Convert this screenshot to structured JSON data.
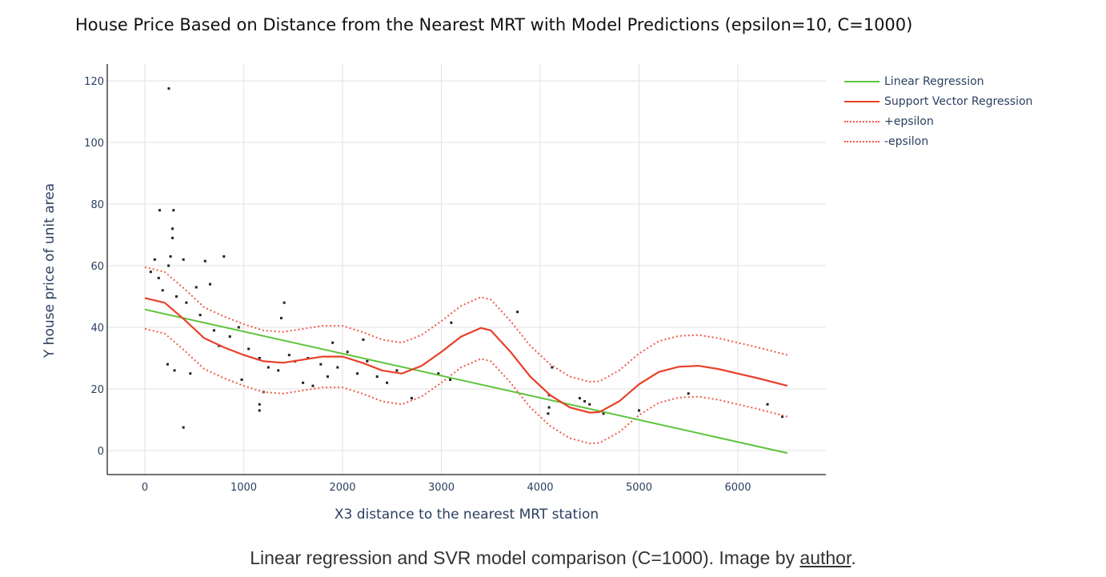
{
  "caption": {
    "text": "Linear regression and SVR model comparison (C=1000). Image by ",
    "link_text": "author",
    "end": "."
  },
  "chart_data": {
    "type": "scatter",
    "title": "House Price Based on Distance from the Nearest MRT with Model Predictions (epsilon=10, C=1000)",
    "xlabel": "X3 distance to the nearest MRT station",
    "ylabel": "Y house price of unit area",
    "xlim": [
      -370,
      6880
    ],
    "ylim": [
      -8,
      124
    ],
    "xticks": [
      0,
      1000,
      2000,
      3000,
      4000,
      5000,
      6000
    ],
    "yticks": [
      0,
      20,
      40,
      60,
      80,
      100,
      120
    ],
    "grid": true,
    "legend_position": "right",
    "colors": {
      "linear": "#5cc43a",
      "svr": "#e8402a",
      "epsilon": "#ef5a4a",
      "points": "#222222",
      "axis_text": "#2a3f5f",
      "grid": "#e6e6e6"
    },
    "series": [
      {
        "name": "Linear Regression",
        "style": "solid-green",
        "x": [
          0,
          6500
        ],
        "y": [
          45.8,
          -0.8
        ]
      },
      {
        "name": "Support Vector Regression",
        "style": "solid-red",
        "x": [
          0,
          200,
          400,
          600,
          800,
          1000,
          1200,
          1400,
          1600,
          1800,
          2000,
          2200,
          2400,
          2600,
          2800,
          3000,
          3200,
          3400,
          3500,
          3700,
          3900,
          4100,
          4300,
          4500,
          4600,
          4800,
          5000,
          5200,
          5400,
          5600,
          5800,
          6000,
          6200,
          6500
        ],
        "y": [
          49.5,
          48.0,
          42.5,
          36.5,
          33.5,
          31.0,
          29.0,
          28.5,
          29.5,
          30.5,
          30.5,
          28.5,
          26.0,
          25.0,
          27.5,
          32.0,
          37.0,
          39.8,
          39.0,
          32.0,
          24.0,
          18.0,
          14.0,
          12.3,
          12.5,
          16.0,
          21.5,
          25.5,
          27.2,
          27.5,
          26.5,
          25.0,
          23.5,
          21.0
        ]
      },
      {
        "name": "+epsilon",
        "style": "dotted-red",
        "offset": 10
      },
      {
        "name": "-epsilon",
        "style": "dotted-red",
        "offset": -10
      }
    ],
    "scatter_points": [
      [
        243,
        117.5
      ],
      [
        390,
        7.5
      ],
      [
        150,
        78
      ],
      [
        290,
        78
      ],
      [
        280,
        72
      ],
      [
        280,
        69
      ],
      [
        260,
        63
      ],
      [
        390,
        62
      ],
      [
        610,
        61.5
      ],
      [
        800,
        63
      ],
      [
        240,
        60
      ],
      [
        520,
        53
      ],
      [
        660,
        54
      ],
      [
        1410,
        48
      ],
      [
        1380,
        43
      ],
      [
        3770,
        45
      ],
      [
        3100,
        41.5
      ],
      [
        1160,
        15
      ],
      [
        1160,
        13
      ],
      [
        1900,
        35
      ],
      [
        2210,
        36
      ],
      [
        2700,
        17
      ],
      [
        4120,
        27
      ],
      [
        4090,
        18
      ],
      [
        4090,
        14
      ],
      [
        4080,
        12
      ],
      [
        4450,
        16
      ],
      [
        4500,
        15
      ],
      [
        4400,
        17
      ],
      [
        5500,
        18.5
      ],
      [
        6300,
        15
      ],
      [
        6450,
        11
      ],
      [
        4640,
        12
      ],
      [
        2970,
        25
      ],
      [
        3090,
        23
      ],
      [
        1600,
        22
      ],
      [
        1700,
        21
      ],
      [
        1200,
        19
      ],
      [
        980,
        23
      ],
      [
        230,
        28
      ],
      [
        300,
        26
      ],
      [
        460,
        25
      ],
      [
        100,
        62
      ],
      [
        60,
        58
      ],
      [
        140,
        56
      ],
      [
        180,
        52
      ],
      [
        320,
        50
      ],
      [
        420,
        48
      ],
      [
        560,
        44
      ],
      [
        700,
        39
      ],
      [
        750,
        34
      ],
      [
        860,
        37
      ],
      [
        950,
        40
      ],
      [
        1050,
        33
      ],
      [
        1160,
        30
      ],
      [
        1250,
        27
      ],
      [
        1350,
        26
      ],
      [
        1460,
        31
      ],
      [
        1520,
        29
      ],
      [
        1650,
        30
      ],
      [
        1780,
        28
      ],
      [
        1850,
        24
      ],
      [
        1950,
        27
      ],
      [
        2050,
        32
      ],
      [
        2150,
        25
      ],
      [
        2250,
        29
      ],
      [
        2350,
        24
      ],
      [
        2450,
        22
      ],
      [
        2550,
        26
      ],
      [
        5000,
        13
      ]
    ]
  }
}
